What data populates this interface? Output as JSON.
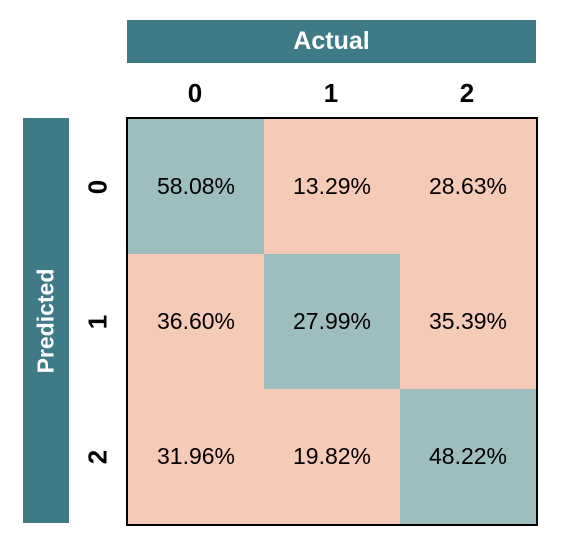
{
  "chart_data": {
    "type": "heatmap",
    "xlabel": "Actual",
    "ylabel": "Predicted",
    "x_categories": [
      "0",
      "1",
      "2"
    ],
    "y_categories": [
      "0",
      "1",
      "2"
    ],
    "values": [
      [
        58.08,
        13.29,
        28.63
      ],
      [
        36.6,
        27.99,
        35.39
      ],
      [
        31.96,
        19.82,
        48.22
      ]
    ],
    "cell_labels": [
      [
        "58.08%",
        "13.29%",
        "28.63%"
      ],
      [
        "36.60%",
        "27.99%",
        "35.39%"
      ],
      [
        "31.96%",
        "19.82%",
        "48.22%"
      ]
    ],
    "colors": {
      "diagonal": "#9dbdbf",
      "off_diagonal": "#f5cab7",
      "header": "#3f7a87"
    }
  }
}
